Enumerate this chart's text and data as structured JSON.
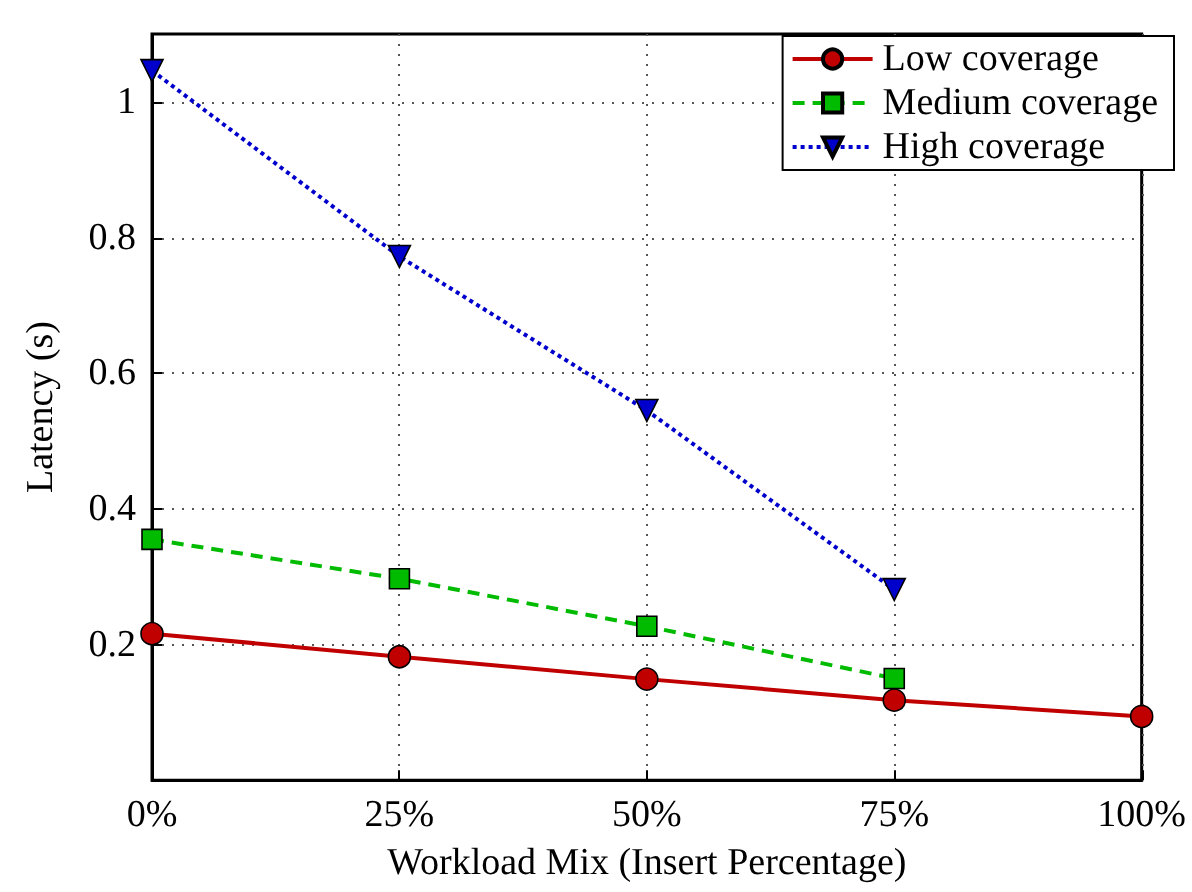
{
  "chart_data": {
    "type": "line",
    "xlabel": "Workload Mix (Insert Percentage)",
    "ylabel": "Latency (s)",
    "xlim": [
      0,
      100
    ],
    "xticks": [
      {
        "value": 0,
        "label": "0%"
      },
      {
        "value": 25,
        "label": "25%"
      },
      {
        "value": 50,
        "label": "50%"
      },
      {
        "value": 75,
        "label": "75%"
      },
      {
        "value": 100,
        "label": "100%"
      }
    ],
    "ylim": [
      0,
      1.1
    ],
    "yticks": [
      0.2,
      0.4,
      0.6,
      0.8,
      1
    ],
    "grid": true,
    "legend": "top right",
    "series": [
      {
        "name": "Low coverage",
        "color": "#c00000",
        "marker": "circle",
        "line_style": "solid",
        "x": [
          0,
          25,
          50,
          75,
          100
        ],
        "values": [
          0.216,
          0.182,
          0.149,
          0.118,
          0.094
        ]
      },
      {
        "name": "Medium coverage",
        "color": "#00bb00",
        "marker": "square",
        "line_style": "dashed",
        "x": [
          0,
          25,
          50,
          75
        ],
        "values": [
          0.355,
          0.297,
          0.227,
          0.15
        ]
      },
      {
        "name": "High coverage",
        "color": "#0000cc",
        "marker": "triangle",
        "line_style": "dotted",
        "x": [
          0,
          25,
          50,
          75
        ],
        "values": [
          1.046,
          0.772,
          0.545,
          0.281
        ]
      }
    ]
  }
}
